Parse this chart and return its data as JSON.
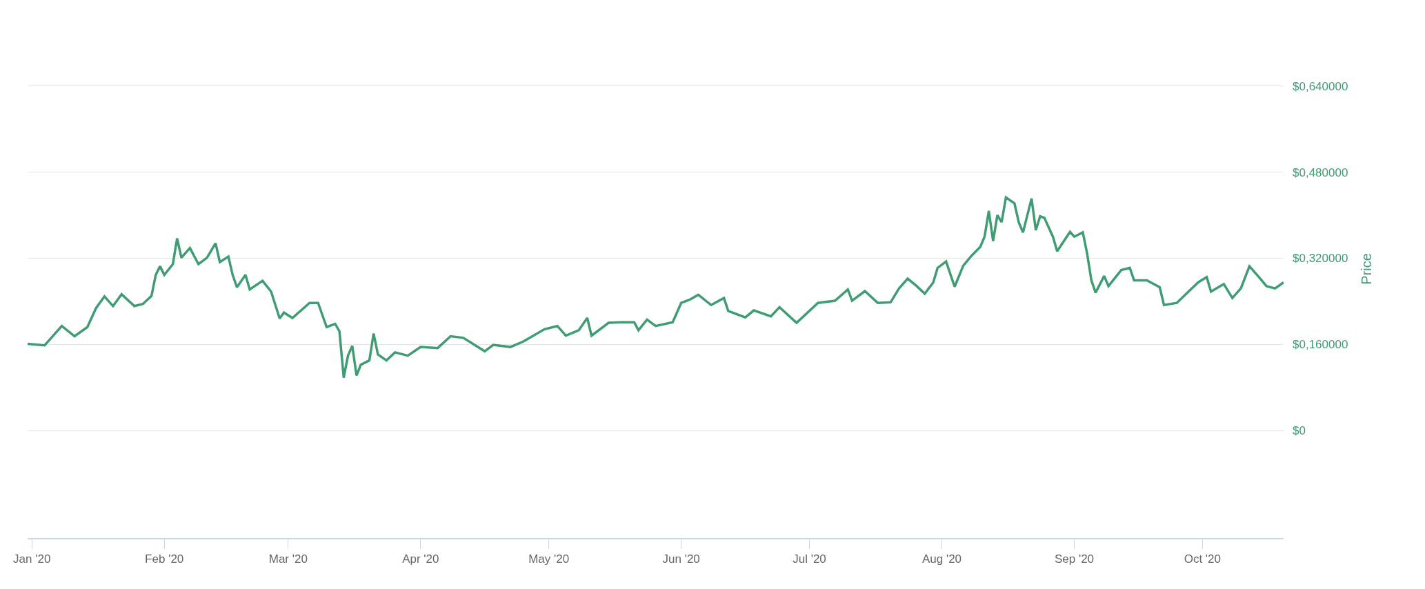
{
  "chart_data": {
    "type": "line",
    "ylabel": "Price",
    "x": [
      "2019-12-31",
      "2020-01-04",
      "2020-01-08",
      "2020-01-11",
      "2020-01-14",
      "2020-01-16",
      "2020-01-18",
      "2020-01-20",
      "2020-01-22",
      "2020-01-25",
      "2020-01-27",
      "2020-01-29",
      "2020-01-30",
      "2020-01-31",
      "2020-02-01",
      "2020-02-03",
      "2020-02-04",
      "2020-02-05",
      "2020-02-07",
      "2020-02-09",
      "2020-02-11",
      "2020-02-13",
      "2020-02-14",
      "2020-02-16",
      "2020-02-17",
      "2020-02-18",
      "2020-02-20",
      "2020-02-21",
      "2020-02-24",
      "2020-02-26",
      "2020-02-28",
      "2020-02-29",
      "2020-03-02",
      "2020-03-06",
      "2020-03-08",
      "2020-03-10",
      "2020-03-12",
      "2020-03-13",
      "2020-03-14",
      "2020-03-15",
      "2020-03-16",
      "2020-03-17",
      "2020-03-18",
      "2020-03-20",
      "2020-03-21",
      "2020-03-22",
      "2020-03-24",
      "2020-03-26",
      "2020-03-29",
      "2020-04-01",
      "2020-04-05",
      "2020-04-08",
      "2020-04-11",
      "2020-04-14",
      "2020-04-16",
      "2020-04-18",
      "2020-04-22",
      "2020-04-25",
      "2020-04-30",
      "2020-05-03",
      "2020-05-05",
      "2020-05-08",
      "2020-05-10",
      "2020-05-11",
      "2020-05-15",
      "2020-05-18",
      "2020-05-21",
      "2020-05-22",
      "2020-05-24",
      "2020-05-26",
      "2020-05-30",
      "2020-06-01",
      "2020-06-03",
      "2020-06-05",
      "2020-06-08",
      "2020-06-11",
      "2020-06-12",
      "2020-06-16",
      "2020-06-18",
      "2020-06-22",
      "2020-06-24",
      "2020-06-28",
      "2020-07-03",
      "2020-07-07",
      "2020-07-10",
      "2020-07-11",
      "2020-07-14",
      "2020-07-17",
      "2020-07-20",
      "2020-07-22",
      "2020-07-24",
      "2020-07-26",
      "2020-07-28",
      "2020-07-30",
      "2020-07-31",
      "2020-08-02",
      "2020-08-04",
      "2020-08-06",
      "2020-08-08",
      "2020-08-10",
      "2020-08-11",
      "2020-08-12",
      "2020-08-13",
      "2020-08-14",
      "2020-08-15",
      "2020-08-16",
      "2020-08-18",
      "2020-08-19",
      "2020-08-20",
      "2020-08-22",
      "2020-08-23",
      "2020-08-24",
      "2020-08-25",
      "2020-08-27",
      "2020-08-28",
      "2020-08-31",
      "2020-09-01",
      "2020-09-03",
      "2020-09-04",
      "2020-09-05",
      "2020-09-06",
      "2020-09-08",
      "2020-09-09",
      "2020-09-12",
      "2020-09-14",
      "2020-09-15",
      "2020-09-18",
      "2020-09-21",
      "2020-09-22",
      "2020-09-25",
      "2020-09-28",
      "2020-09-30",
      "2020-10-02",
      "2020-10-03",
      "2020-10-06",
      "2020-10-08",
      "2020-10-10",
      "2020-10-12",
      "2020-10-14",
      "2020-10-16",
      "2020-10-18",
      "2020-10-20"
    ],
    "series": [
      {
        "color": "#3f9c73",
        "values": [
          0.161,
          0.158,
          0.194,
          0.175,
          0.192,
          0.227,
          0.249,
          0.231,
          0.253,
          0.231,
          0.235,
          0.25,
          0.289,
          0.305,
          0.289,
          0.309,
          0.357,
          0.321,
          0.339,
          0.309,
          0.321,
          0.348,
          0.313,
          0.323,
          0.289,
          0.266,
          0.289,
          0.262,
          0.278,
          0.258,
          0.208,
          0.219,
          0.209,
          0.237,
          0.237,
          0.192,
          0.198,
          0.184,
          0.098,
          0.139,
          0.157,
          0.102,
          0.122,
          0.13,
          0.18,
          0.141,
          0.13,
          0.145,
          0.139,
          0.155,
          0.153,
          0.175,
          0.172,
          0.157,
          0.147,
          0.159,
          0.155,
          0.165,
          0.188,
          0.194,
          0.176,
          0.186,
          0.209,
          0.176,
          0.2,
          0.201,
          0.201,
          0.186,
          0.206,
          0.194,
          0.201,
          0.237,
          0.243,
          0.252,
          0.233,
          0.246,
          0.222,
          0.21,
          0.223,
          0.212,
          0.229,
          0.2,
          0.237,
          0.241,
          0.262,
          0.241,
          0.259,
          0.237,
          0.238,
          0.264,
          0.282,
          0.269,
          0.254,
          0.275,
          0.302,
          0.314,
          0.267,
          0.306,
          0.325,
          0.341,
          0.36,
          0.408,
          0.352,
          0.4,
          0.387,
          0.433,
          0.422,
          0.387,
          0.368,
          0.431,
          0.372,
          0.398,
          0.395,
          0.36,
          0.333,
          0.369,
          0.36,
          0.368,
          0.329,
          0.279,
          0.256,
          0.287,
          0.268,
          0.298,
          0.302,
          0.279,
          0.279,
          0.266,
          0.233,
          0.237,
          0.26,
          0.275,
          0.285,
          0.258,
          0.272,
          0.246,
          0.264,
          0.305,
          0.287,
          0.268,
          0.264,
          0.275
        ]
      }
    ],
    "xlim": [
      "2019-12-31",
      "2020-10-20"
    ],
    "xticks": [
      {
        "value": "2020-01-01",
        "label": "Jan '20"
      },
      {
        "value": "2020-02-01",
        "label": "Feb '20"
      },
      {
        "value": "2020-03-01",
        "label": "Mar '20"
      },
      {
        "value": "2020-04-01",
        "label": "Apr '20"
      },
      {
        "value": "2020-05-01",
        "label": "May '20"
      },
      {
        "value": "2020-06-01",
        "label": "Jun '20"
      },
      {
        "value": "2020-07-01",
        "label": "Jul '20"
      },
      {
        "value": "2020-08-01",
        "label": "Aug '20"
      },
      {
        "value": "2020-09-01",
        "label": "Sep '20"
      },
      {
        "value": "2020-10-01",
        "label": "Oct '20"
      }
    ],
    "ylim": [
      -0.2,
      0.8
    ],
    "yticks": [
      {
        "value": 0,
        "label": "$0"
      },
      {
        "value": 0.16,
        "label": "$0,160000"
      },
      {
        "value": 0.32,
        "label": "$0,320000"
      },
      {
        "value": 0.48,
        "label": "$0,480000"
      },
      {
        "value": 0.64,
        "label": "$0,640000"
      }
    ],
    "grid": "y",
    "marker": "none",
    "line_style": "solid"
  }
}
